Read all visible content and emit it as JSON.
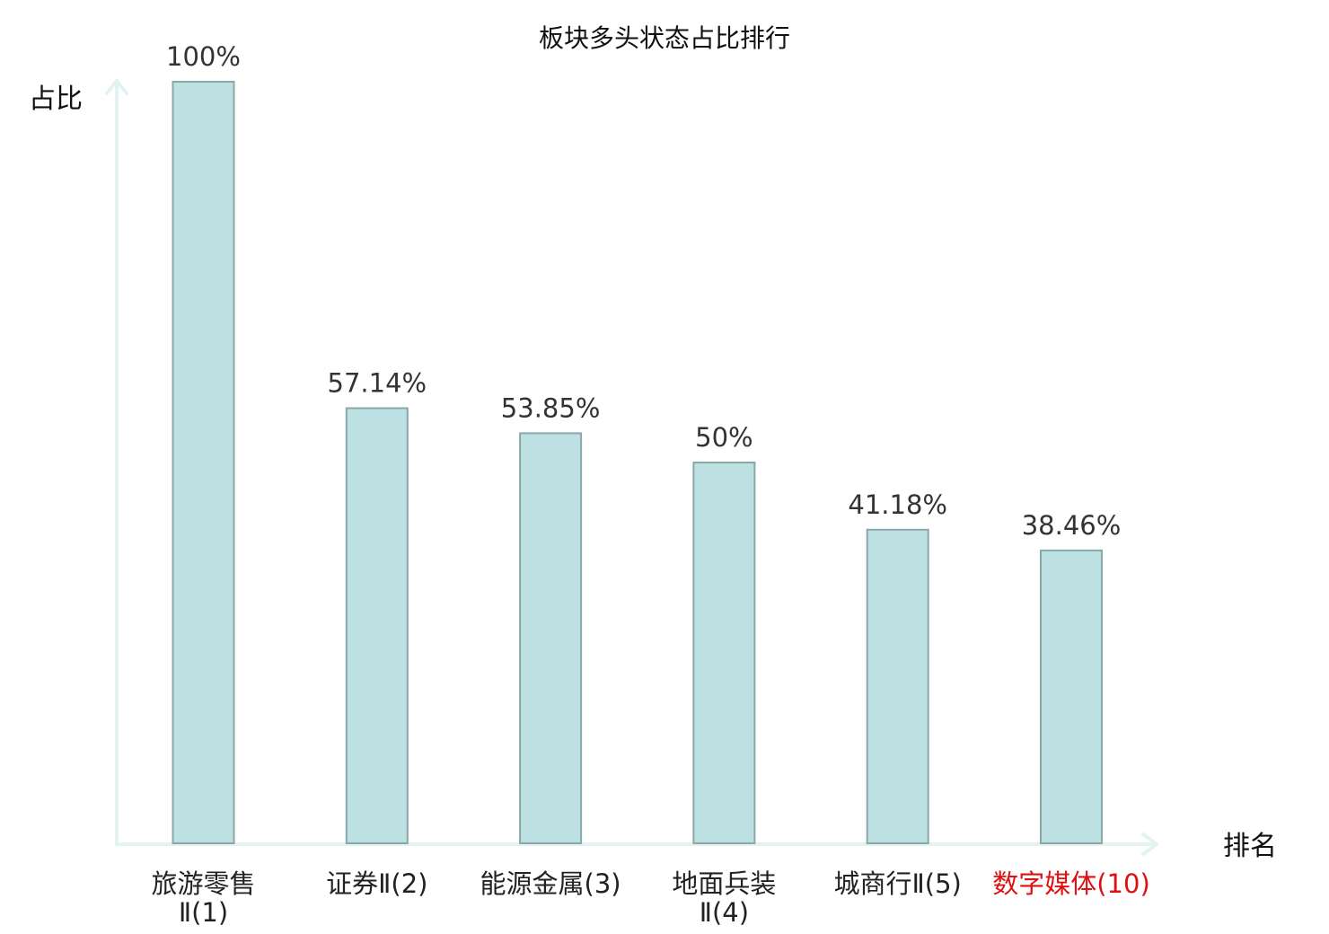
{
  "chart_data": {
    "type": "bar",
    "title": "板块多头状态占比排行",
    "ylabel": "占比",
    "xlabel": "排名",
    "ylim": [
      0,
      100
    ],
    "grid": false,
    "categories": [
      [
        "旅游零售",
        "Ⅱ(1)"
      ],
      [
        "证券Ⅱ(2)"
      ],
      [
        "能源金属(3)"
      ],
      [
        "地面兵装",
        "Ⅱ(4)"
      ],
      [
        "城商行Ⅱ(5)"
      ],
      [
        "数字媒体(10)"
      ]
    ],
    "values": [
      100,
      57.14,
      53.85,
      50,
      41.18,
      38.46
    ],
    "value_labels": [
      "100%",
      "57.14%",
      "53.85%",
      "50%",
      "41.18%",
      "38.46%"
    ],
    "highlight_index": 5,
    "colors": {
      "bar_fill": "#bde0e2",
      "bar_stroke": "#8aa7a9",
      "axis": "#e2f3f1",
      "highlight": "#e01010"
    }
  }
}
